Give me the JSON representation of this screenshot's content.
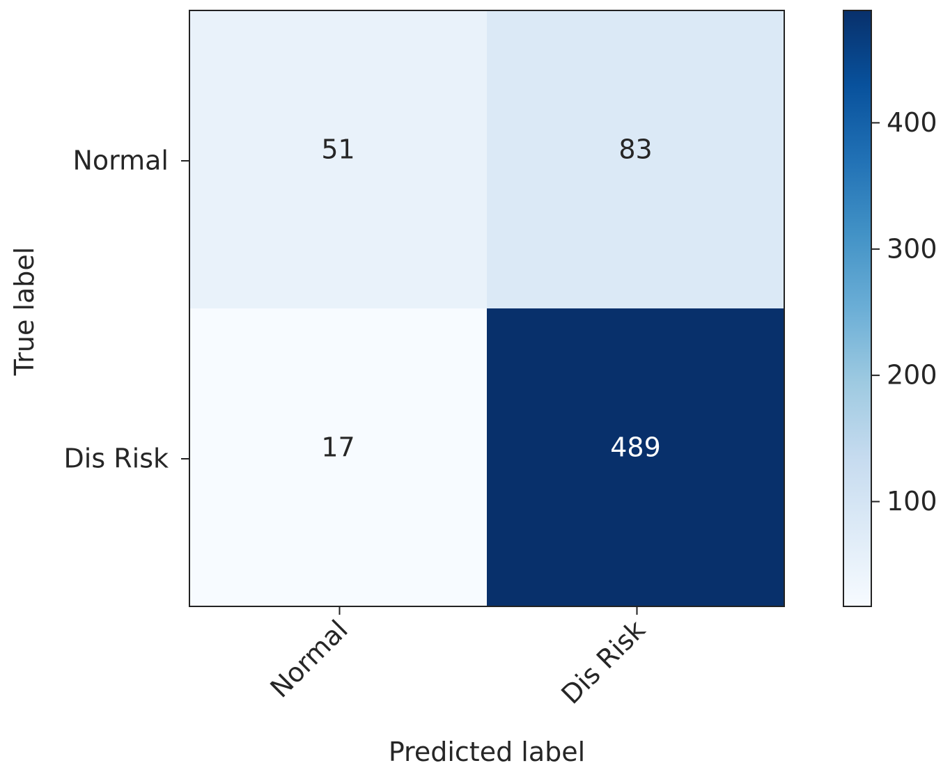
{
  "chart_data": {
    "type": "heatmap",
    "title": "",
    "x_categories": [
      "Normal",
      "Dis Risk"
    ],
    "y_categories": [
      "Normal",
      "Dis Risk"
    ],
    "values": [
      [
        51,
        83
      ],
      [
        17,
        489
      ]
    ],
    "xlabel": "Predicted label",
    "ylabel": "True label",
    "colormap": "Blues",
    "colorbar": {
      "range": [
        17,
        489
      ],
      "ticks": [
        100,
        200,
        300,
        400
      ],
      "tick_labels": [
        "100",
        "200",
        "300",
        "400"
      ]
    },
    "text_colors": {
      "light": "#ffffff",
      "dark": "#262626"
    }
  }
}
